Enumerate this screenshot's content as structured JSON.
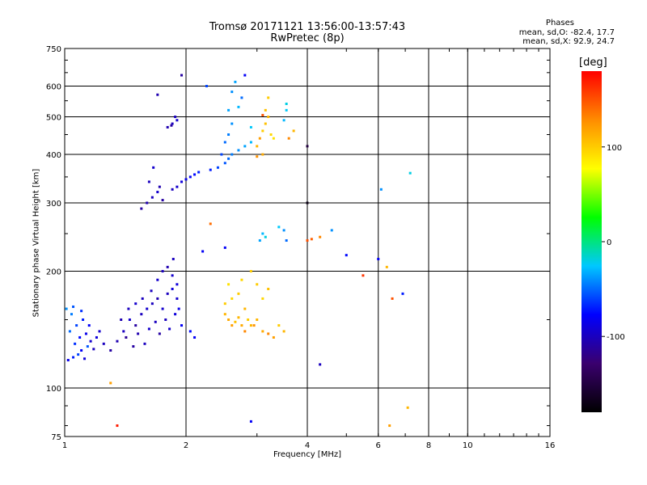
{
  "header": {
    "title": "Tromsø 20171121 13:56:00-13:57:43",
    "subtitle": "RwPretec (8p)"
  },
  "phase_box": {
    "heading": "Phases",
    "line_o": "mean, sd,O: -82.4, 17.7",
    "line_x": "mean, sd,X: 92.9, 24.7"
  },
  "colorbar": {
    "unit": "[deg]",
    "range": [
      -180,
      180
    ],
    "ticks": [
      {
        "value": 100,
        "label": "100"
      },
      {
        "value": 0,
        "label": "0"
      },
      {
        "value": -100,
        "label": "-100"
      }
    ],
    "colors": [
      "#000000",
      "#3a006e",
      "#0000ff",
      "#00c8ff",
      "#00ff00",
      "#ffff00",
      "#ff8c00",
      "#ff0000"
    ]
  },
  "chart_data": {
    "type": "scatter",
    "xlabel": "Frequency [MHz]",
    "ylabel": "Stationary phase Virtual Height [km]",
    "x_scale": "log",
    "y_scale": "log",
    "xlim": [
      1,
      16
    ],
    "ylim": [
      75,
      750
    ],
    "x_ticks": [
      {
        "value": 1,
        "label": "1"
      },
      {
        "value": 2,
        "label": "2"
      },
      {
        "value": 4,
        "label": "4"
      },
      {
        "value": 6,
        "label": "6"
      },
      {
        "value": 8,
        "label": "8"
      },
      {
        "value": 10,
        "label": "10"
      },
      {
        "value": 16,
        "label": "16"
      }
    ],
    "y_ticks": [
      {
        "value": 75,
        "label": "75"
      },
      {
        "value": 100,
        "label": "100"
      },
      {
        "value": 200,
        "label": "200"
      },
      {
        "value": 300,
        "label": "300"
      },
      {
        "value": 400,
        "label": "400"
      },
      {
        "value": 500,
        "label": "500"
      },
      {
        "value": 600,
        "label": "600"
      },
      {
        "value": 750,
        "label": "750"
      }
    ],
    "x_grid": [
      2,
      4,
      6,
      8,
      10
    ],
    "y_grid": [
      100,
      200,
      300,
      400,
      500,
      600
    ],
    "grid": true,
    "point_value": "phase [deg]",
    "points": [
      [
        1.02,
        118,
        -85
      ],
      [
        1.05,
        120,
        -70
      ],
      [
        1.08,
        122,
        -60
      ],
      [
        1.1,
        125,
        -80
      ],
      [
        1.12,
        119,
        -90
      ],
      [
        1.06,
        130,
        -65
      ],
      [
        1.09,
        135,
        -75
      ],
      [
        1.14,
        128,
        -55
      ],
      [
        1.03,
        140,
        -50
      ],
      [
        1.07,
        145,
        -60
      ],
      [
        1.11,
        150,
        -70
      ],
      [
        1.04,
        155,
        -45
      ],
      [
        1.13,
        138,
        -85
      ],
      [
        1.16,
        132,
        -95
      ],
      [
        1.18,
        126,
        -100
      ],
      [
        1.2,
        135,
        -90
      ],
      [
        1.15,
        145,
        -80
      ],
      [
        1.22,
        140,
        -95
      ],
      [
        1.25,
        130,
        -100
      ],
      [
        1.01,
        160,
        -40
      ],
      [
        1.05,
        162,
        -55
      ],
      [
        1.1,
        158,
        -65
      ],
      [
        1.3,
        125,
        -110
      ],
      [
        1.35,
        132,
        -105
      ],
      [
        1.4,
        140,
        -100
      ],
      [
        1.45,
        150,
        -95
      ],
      [
        1.5,
        145,
        -110
      ],
      [
        1.55,
        155,
        -100
      ],
      [
        1.6,
        160,
        -95
      ],
      [
        1.65,
        165,
        -100
      ],
      [
        1.7,
        170,
        -105
      ],
      [
        1.75,
        160,
        -95
      ],
      [
        1.8,
        175,
        -100
      ],
      [
        1.85,
        180,
        -90
      ],
      [
        1.9,
        170,
        -95
      ],
      [
        1.42,
        135,
        -115
      ],
      [
        1.48,
        128,
        -110
      ],
      [
        1.52,
        138,
        -105
      ],
      [
        1.58,
        130,
        -100
      ],
      [
        1.62,
        142,
        -95
      ],
      [
        1.68,
        148,
        -100
      ],
      [
        1.72,
        138,
        -110
      ],
      [
        1.78,
        150,
        -100
      ],
      [
        1.82,
        142,
        -95
      ],
      [
        1.88,
        155,
        -90
      ],
      [
        1.92,
        160,
        -85
      ],
      [
        1.95,
        145,
        -80
      ],
      [
        2.05,
        140,
        -75
      ],
      [
        2.1,
        135,
        -80
      ],
      [
        1.38,
        150,
        -105
      ],
      [
        1.44,
        160,
        -100
      ],
      [
        1.5,
        165,
        -95
      ],
      [
        1.56,
        170,
        -100
      ],
      [
        1.64,
        178,
        -100
      ],
      [
        1.7,
        190,
        -95
      ],
      [
        1.75,
        200,
        -100
      ],
      [
        1.8,
        205,
        -105
      ],
      [
        1.85,
        195,
        -95
      ],
      [
        1.9,
        185,
        -90
      ],
      [
        1.86,
        215,
        -100
      ],
      [
        1.55,
        290,
        -110
      ],
      [
        1.6,
        300,
        -105
      ],
      [
        1.65,
        310,
        -100
      ],
      [
        1.7,
        320,
        -95
      ],
      [
        1.75,
        305,
        -110
      ],
      [
        1.62,
        340,
        -100
      ],
      [
        1.66,
        370,
        -95
      ],
      [
        1.72,
        330,
        -105
      ],
      [
        1.85,
        325,
        -100
      ],
      [
        1.9,
        330,
        -95
      ],
      [
        1.95,
        340,
        -90
      ],
      [
        2.0,
        345,
        -85
      ],
      [
        2.05,
        350,
        -80
      ],
      [
        2.1,
        355,
        -75
      ],
      [
        2.15,
        360,
        -70
      ],
      [
        1.8,
        470,
        -105
      ],
      [
        1.85,
        480,
        -100
      ],
      [
        1.9,
        490,
        -95
      ],
      [
        1.88,
        500,
        -100
      ],
      [
        1.84,
        475,
        -110
      ],
      [
        1.7,
        570,
        -105
      ],
      [
        1.95,
        640,
        -110
      ],
      [
        2.3,
        365,
        -70
      ],
      [
        2.4,
        370,
        -60
      ],
      [
        2.5,
        380,
        -55
      ],
      [
        2.55,
        390,
        -50
      ],
      [
        2.6,
        400,
        -45
      ],
      [
        2.7,
        410,
        -40
      ],
      [
        2.8,
        420,
        -35
      ],
      [
        2.9,
        430,
        -30
      ],
      [
        2.45,
        400,
        -60
      ],
      [
        2.5,
        430,
        -50
      ],
      [
        2.55,
        450,
        -45
      ],
      [
        2.6,
        480,
        -40
      ],
      [
        2.55,
        520,
        -35
      ],
      [
        2.6,
        580,
        -40
      ],
      [
        2.7,
        530,
        -30
      ],
      [
        2.75,
        560,
        -50
      ],
      [
        2.8,
        640,
        -80
      ],
      [
        2.65,
        615,
        -35
      ],
      [
        2.9,
        470,
        -25
      ],
      [
        3.0,
        420,
        110
      ],
      [
        3.05,
        440,
        120
      ],
      [
        3.1,
        460,
        100
      ],
      [
        3.15,
        480,
        105
      ],
      [
        3.2,
        500,
        110
      ],
      [
        3.15,
        520,
        105
      ],
      [
        3.2,
        560,
        100
      ],
      [
        3.1,
        400,
        115
      ],
      [
        3.0,
        395,
        125
      ],
      [
        3.25,
        450,
        95
      ],
      [
        3.3,
        440,
        90
      ],
      [
        3.1,
        505,
        150
      ],
      [
        3.5,
        490,
        -30
      ],
      [
        3.55,
        520,
        -25
      ],
      [
        3.6,
        440,
        130
      ],
      [
        3.55,
        540,
        -20
      ],
      [
        3.7,
        460,
        110
      ],
      [
        2.25,
        600,
        -60
      ],
      [
        2.5,
        155,
        110
      ],
      [
        2.55,
        150,
        115
      ],
      [
        2.6,
        145,
        120
      ],
      [
        2.65,
        148,
        105
      ],
      [
        2.7,
        152,
        110
      ],
      [
        2.75,
        145,
        115
      ],
      [
        2.8,
        140,
        130
      ],
      [
        2.85,
        150,
        100
      ],
      [
        2.9,
        145,
        110
      ],
      [
        2.5,
        165,
        100
      ],
      [
        2.6,
        170,
        95
      ],
      [
        2.7,
        175,
        100
      ],
      [
        2.8,
        160,
        110
      ],
      [
        2.95,
        145,
        125
      ],
      [
        3.0,
        150,
        110
      ],
      [
        3.1,
        140,
        115
      ],
      [
        3.2,
        138,
        130
      ],
      [
        3.3,
        135,
        120
      ],
      [
        3.4,
        145,
        100
      ],
      [
        3.5,
        140,
        110
      ],
      [
        2.75,
        190,
        95
      ],
      [
        3.0,
        185,
        100
      ],
      [
        3.2,
        180,
        105
      ],
      [
        2.9,
        200,
        100
      ],
      [
        3.1,
        170,
        95
      ],
      [
        2.55,
        185,
        90
      ],
      [
        3.1,
        250,
        -30
      ],
      [
        3.15,
        245,
        -20
      ],
      [
        3.05,
        240,
        -35
      ],
      [
        3.5,
        255,
        -40
      ],
      [
        3.55,
        240,
        -50
      ],
      [
        3.4,
        260,
        -25
      ],
      [
        2.5,
        230,
        -80
      ],
      [
        2.3,
        265,
        140
      ],
      [
        4.0,
        240,
        150
      ],
      [
        4.1,
        242,
        145
      ],
      [
        4.3,
        245,
        130
      ],
      [
        4.6,
        255,
        -40
      ],
      [
        5.0,
        220,
        -75
      ],
      [
        5.5,
        195,
        160
      ],
      [
        6.0,
        215,
        -80
      ],
      [
        6.1,
        325,
        -40
      ],
      [
        6.3,
        205,
        110
      ],
      [
        6.5,
        170,
        150
      ],
      [
        6.9,
        175,
        -70
      ],
      [
        7.2,
        358,
        -20
      ],
      [
        4.0,
        420,
        -150
      ],
      [
        4.0,
        300,
        -170
      ],
      [
        2.2,
        225,
        -80
      ],
      [
        1.35,
        80,
        170
      ],
      [
        6.4,
        80,
        120
      ],
      [
        7.1,
        89,
        110
      ],
      [
        2.9,
        82,
        -80
      ],
      [
        1.3,
        103,
        120
      ],
      [
        4.3,
        115,
        -100
      ]
    ]
  }
}
